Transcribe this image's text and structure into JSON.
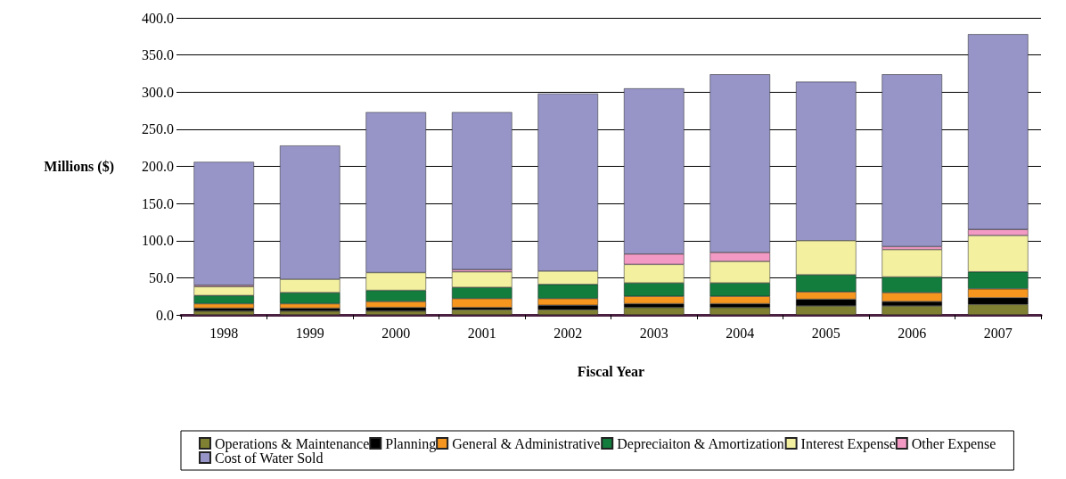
{
  "chart_data": {
    "type": "bar",
    "stacked": true,
    "xlabel": "Fiscal Year",
    "ylabel": "Millions ($)",
    "categories": [
      "1998",
      "1999",
      "2000",
      "2001",
      "2002",
      "2003",
      "2004",
      "2005",
      "2006",
      "2007"
    ],
    "series": [
      {
        "name": "Operations & Maintenance",
        "color": "#808033",
        "values": [
          5,
          5,
          5,
          7,
          7,
          10,
          10,
          12,
          12,
          14
        ]
      },
      {
        "name": "Planning",
        "color": "#000000",
        "values": [
          4,
          4,
          5,
          3,
          6,
          5,
          5,
          9,
          6,
          9
        ]
      },
      {
        "name": "General & Administrative",
        "color": "#f7961e",
        "values": [
          6,
          6,
          8,
          12,
          9,
          10,
          10,
          10,
          12,
          12
        ]
      },
      {
        "name": "Depreciaiton & Amortization",
        "color": "#137d3e",
        "values": [
          11,
          15,
          15,
          15,
          19,
          18,
          18,
          23,
          21,
          23
        ]
      },
      {
        "name": "Interest Expense",
        "color": "#f3f0a0",
        "values": [
          12,
          18,
          24,
          21,
          18,
          25,
          29,
          46,
          37,
          49
        ]
      },
      {
        "name": "Other Expense",
        "color": "#f29ac4",
        "values": [
          2,
          null,
          null,
          3,
          null,
          14,
          12,
          null,
          4,
          8
        ]
      },
      {
        "name": "Cost of Water Sold",
        "color": "#9795c8",
        "values": [
          166,
          180,
          216,
          212,
          239,
          223,
          240,
          214,
          232,
          263
        ]
      }
    ],
    "ylim": [
      0,
      400
    ],
    "yticks": [
      {
        "value": 0,
        "label": "0.0"
      },
      {
        "value": 50,
        "label": "50.0"
      },
      {
        "value": 100,
        "label": "100.0"
      },
      {
        "value": 150,
        "label": "150.0"
      },
      {
        "value": 200,
        "label": "200.0"
      },
      {
        "value": 250,
        "label": "250.0"
      },
      {
        "value": 300,
        "label": "300.0"
      },
      {
        "value": 350,
        "label": "350.0"
      },
      {
        "value": 400,
        "label": "400.0"
      }
    ],
    "grid": "y",
    "legend": "bottom"
  }
}
